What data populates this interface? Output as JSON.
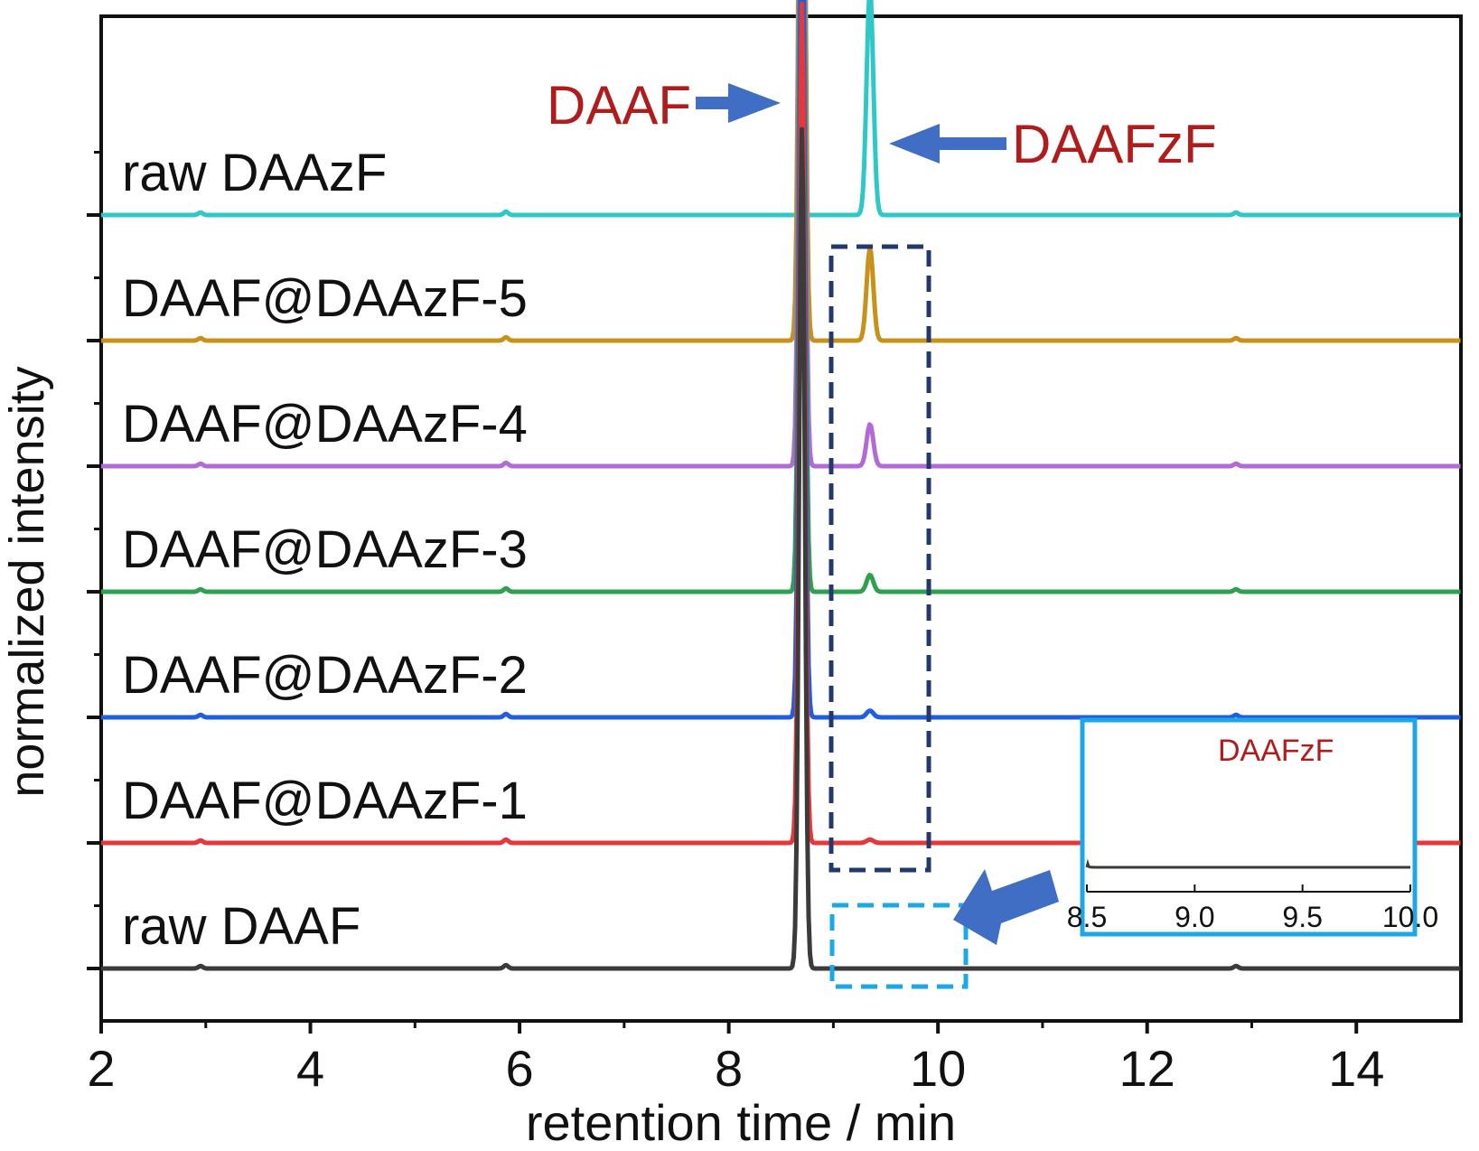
{
  "chart_data": {
    "type": "line",
    "xlabel": "retention time / min",
    "ylabel": "normalized intensity",
    "xlim": [
      2,
      15
    ],
    "xticks": [
      2,
      4,
      6,
      8,
      10,
      12,
      14
    ],
    "grid": false,
    "stacked_offsets": true,
    "series": [
      {
        "name": "raw DAAF",
        "color": "#3b3b3b",
        "peaks": [
          {
            "x": 8.7,
            "height": 1.0
          },
          {
            "x": 9.35,
            "height": 0.0
          }
        ]
      },
      {
        "name": "DAAF@DAAzF-1",
        "color": "#e8373b",
        "peaks": [
          {
            "x": 8.7,
            "height": 1.0
          },
          {
            "x": 9.35,
            "height": 0.004
          }
        ]
      },
      {
        "name": "DAAF@DAAzF-2",
        "color": "#1f5ee0",
        "peaks": [
          {
            "x": 8.7,
            "height": 1.0
          },
          {
            "x": 9.35,
            "height": 0.008
          }
        ]
      },
      {
        "name": "DAAF@DAAzF-3",
        "color": "#2ea04f",
        "peaks": [
          {
            "x": 8.7,
            "height": 1.0
          },
          {
            "x": 9.35,
            "height": 0.02
          }
        ]
      },
      {
        "name": "DAAF@DAAzF-4",
        "color": "#b26bd6",
        "peaks": [
          {
            "x": 8.7,
            "height": 1.0
          },
          {
            "x": 9.35,
            "height": 0.05
          }
        ]
      },
      {
        "name": "DAAF@DAAzF-5",
        "color": "#c8921a",
        "peaks": [
          {
            "x": 8.7,
            "height": 1.0
          },
          {
            "x": 9.35,
            "height": 0.11
          }
        ]
      },
      {
        "name": "raw DAAzF",
        "color": "#2ec8c8",
        "peaks": [
          {
            "x": 8.7,
            "height": 0.0
          },
          {
            "x": 9.35,
            "height": 0.27
          }
        ]
      }
    ],
    "annotations": [
      {
        "text": "DAAF",
        "color": "#b01c1c",
        "points_to_x": 8.7
      },
      {
        "text": "DAAFzF",
        "color": "#b01c1c",
        "points_to_x": 9.35
      }
    ],
    "inset": {
      "xlim": [
        8.5,
        10.0
      ],
      "xticks": [
        "8.5",
        "9.0",
        "9.5",
        "10.0"
      ],
      "label": "DAAFzF",
      "label_color": "#b01c1c",
      "border_color": "#1aa9e6",
      "line_color": "#3b3b3b"
    },
    "arrow_color": "#3f6ec4"
  }
}
